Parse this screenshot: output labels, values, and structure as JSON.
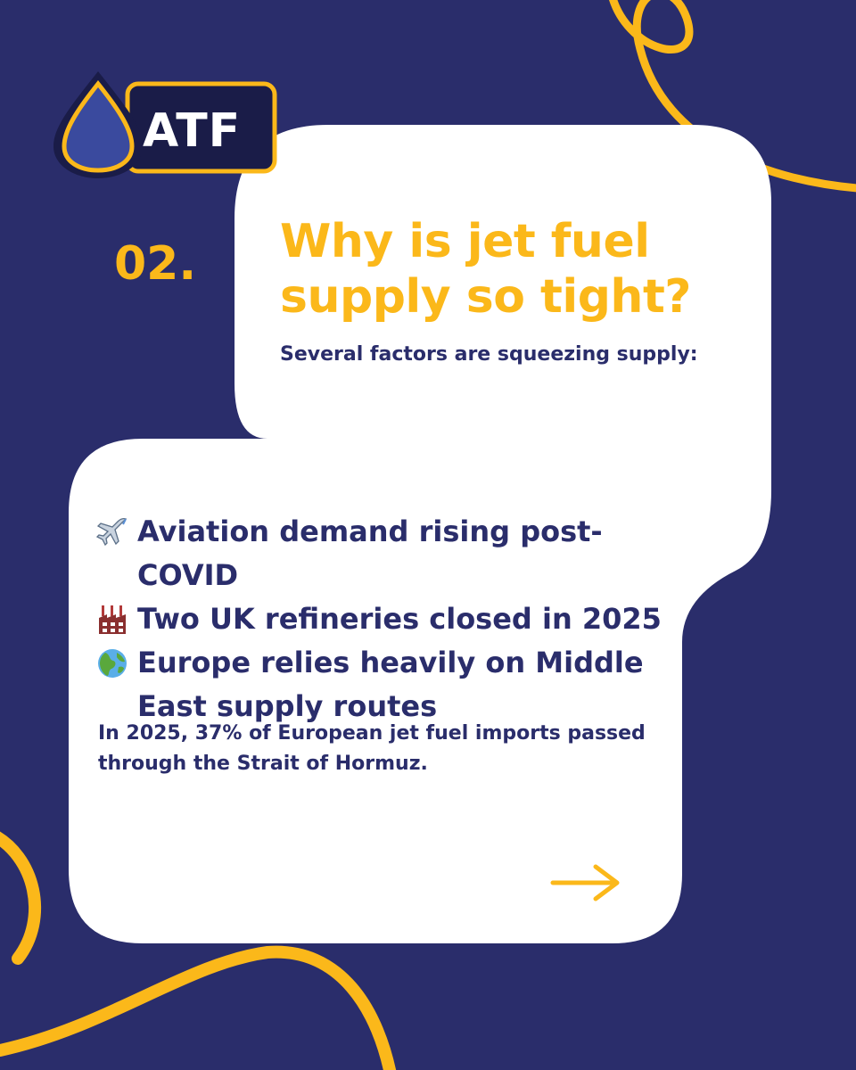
{
  "brand": {
    "logo_text": "ATF"
  },
  "colors": {
    "background": "#2a2d6b",
    "accent": "#fbb81a",
    "card": "#ffffff",
    "text": "#2a2d6b"
  },
  "step_number": "02.",
  "headline": {
    "line1": "Why is jet fuel",
    "line2": "supply so tight?"
  },
  "subhead": "Several factors are squeezing supply:",
  "factors": [
    {
      "icon": "airplane-icon",
      "text": "Aviation demand rising post-COVID"
    },
    {
      "icon": "factory-icon",
      "text": "Two UK refineries closed in 2025"
    },
    {
      "icon": "globe-icon",
      "text": "Europe relies heavily on Middle East supply routes"
    }
  ],
  "note": "In 2025, 37% of European jet fuel imports passed through the Strait of Hormuz.",
  "next_icon": "arrow-right-icon"
}
